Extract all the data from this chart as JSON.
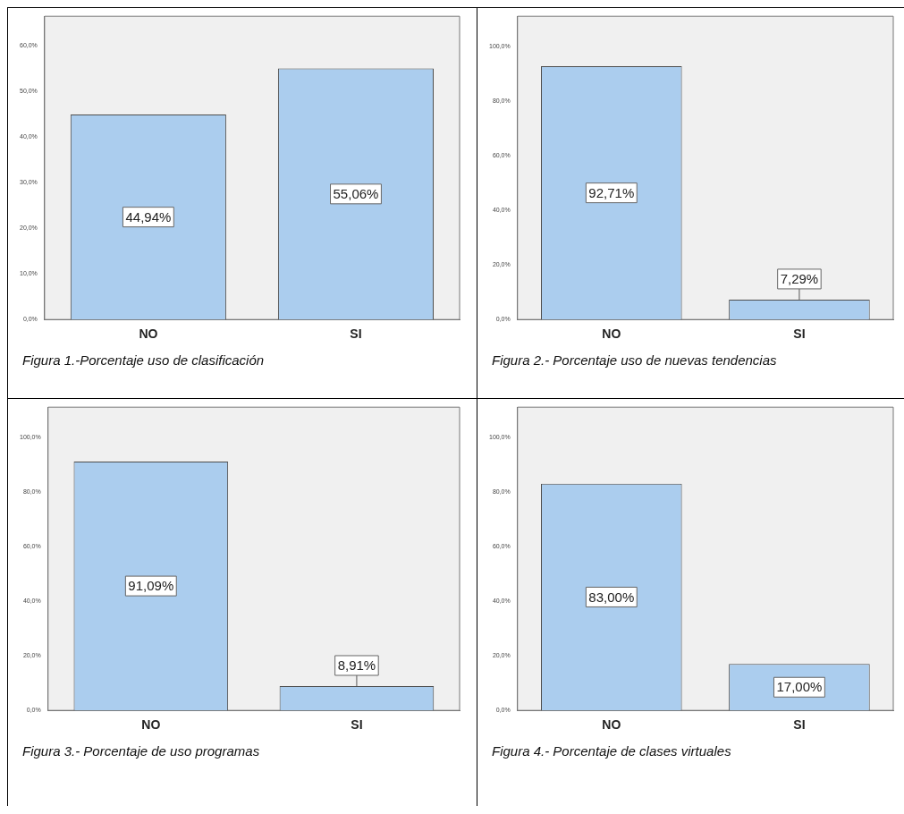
{
  "chart_data": [
    {
      "type": "bar",
      "title": "Figura 1.-Porcentaje uso de clasificación",
      "categories": [
        "NO",
        "SI"
      ],
      "values": [
        44.94,
        55.06
      ],
      "value_labels": [
        "44,94%",
        "55,06%"
      ],
      "color": "#abcdee",
      "ylim": [
        0,
        66.5
      ],
      "yticks": [
        {
          "value": 0,
          "label": "0,0%"
        },
        {
          "value": 10,
          "label": "10,0%"
        },
        {
          "value": 20,
          "label": "20,0%"
        },
        {
          "value": 30,
          "label": "30,0%"
        },
        {
          "value": 40,
          "label": "40,0%"
        },
        {
          "value": 50,
          "label": "50,0%"
        },
        {
          "value": 60,
          "label": "60,0%"
        }
      ]
    },
    {
      "type": "bar",
      "title": "Figura 2.- Porcentaje uso de nuevas tendencias",
      "categories": [
        "NO",
        "SI"
      ],
      "values": [
        92.71,
        7.29
      ],
      "value_labels": [
        "92,71%",
        "7,29%"
      ],
      "color": "#abcdee",
      "ylim": [
        0,
        111
      ],
      "yticks": [
        {
          "value": 0,
          "label": "0,0%"
        },
        {
          "value": 20,
          "label": "20,0%"
        },
        {
          "value": 40,
          "label": "40,0%"
        },
        {
          "value": 60,
          "label": "60,0%"
        },
        {
          "value": 80,
          "label": "80,0%"
        },
        {
          "value": 100,
          "label": "100,0%"
        }
      ]
    },
    {
      "type": "bar",
      "title": "Figura 3.- Porcentaje de uso programas",
      "categories": [
        "NO",
        "SI"
      ],
      "values": [
        91.09,
        8.91
      ],
      "value_labels": [
        "91,09%",
        "8,91%"
      ],
      "color": "#abcdee",
      "ylim": [
        0,
        111
      ],
      "yticks": [
        {
          "value": 0,
          "label": "0,0%"
        },
        {
          "value": 20,
          "label": "20,0%"
        },
        {
          "value": 40,
          "label": "40,0%"
        },
        {
          "value": 60,
          "label": "60,0%"
        },
        {
          "value": 80,
          "label": "80,0%"
        },
        {
          "value": 100,
          "label": "100,0%"
        }
      ]
    },
    {
      "type": "bar",
      "title": "Figura 4.- Porcentaje de clases virtuales",
      "categories": [
        "NO",
        "SI"
      ],
      "values": [
        83.0,
        17.0
      ],
      "value_labels": [
        "83,00%",
        "17,00%"
      ],
      "color": "#abcdee",
      "ylim": [
        0,
        111
      ],
      "yticks": [
        {
          "value": 0,
          "label": "0,0%"
        },
        {
          "value": 20,
          "label": "20,0%"
        },
        {
          "value": 40,
          "label": "40,0%"
        },
        {
          "value": 60,
          "label": "60,0%"
        },
        {
          "value": 80,
          "label": "80,0%"
        },
        {
          "value": 100,
          "label": "100,0%"
        }
      ]
    }
  ]
}
